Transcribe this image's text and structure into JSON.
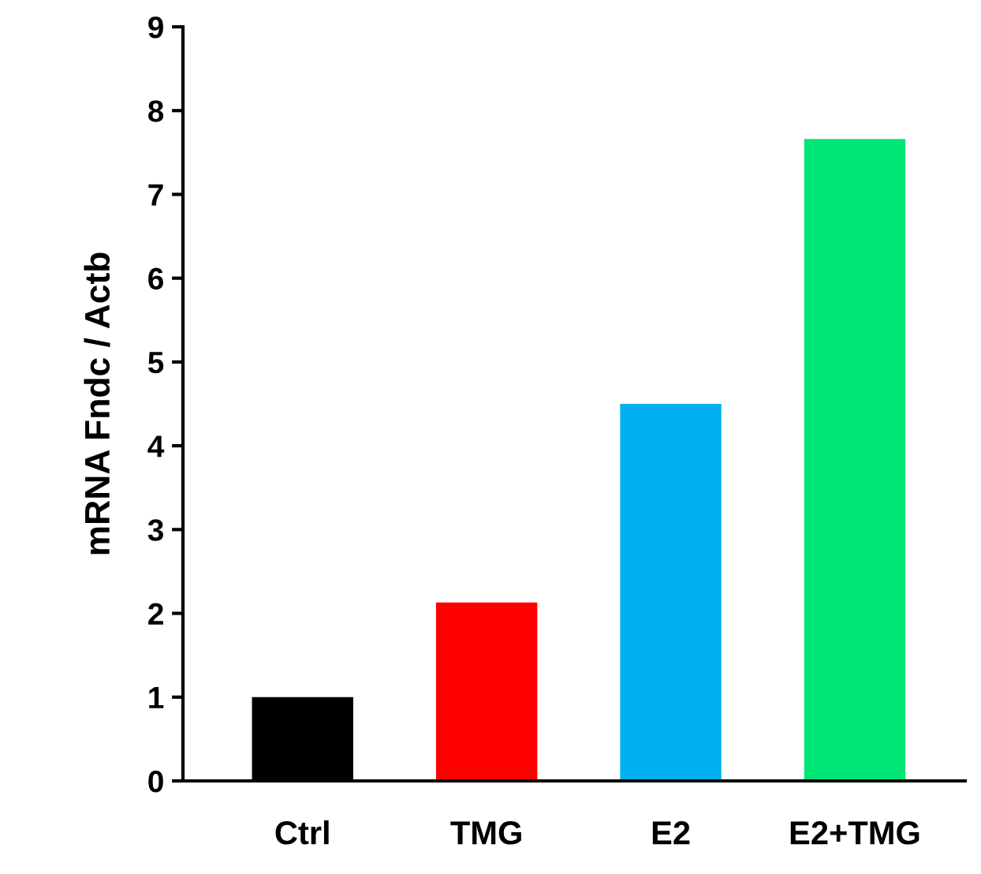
{
  "chart_data": {
    "type": "bar",
    "ylabel": "mRNA Fndc / Actb",
    "categories": [
      "Ctrl",
      "TMG",
      "E2",
      "E2+TMG"
    ],
    "values": [
      1.0,
      2.13,
      4.5,
      7.66
    ],
    "colors": [
      "#000000",
      "#ff0000",
      "#00b0f0",
      "#00e676"
    ],
    "ylim": [
      0,
      9
    ],
    "yticks": [
      0,
      1,
      2,
      3,
      4,
      5,
      6,
      7,
      8,
      9
    ],
    "grid": false,
    "legend": false
  }
}
